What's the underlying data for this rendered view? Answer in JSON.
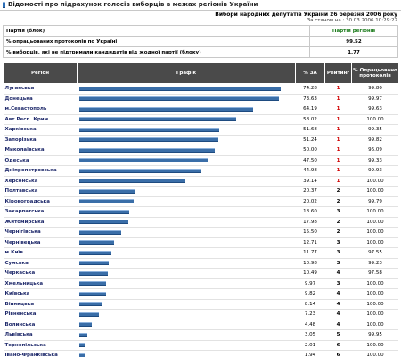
{
  "header": {
    "title": "Відомості про підрахунок голосів виборців в межах регіонів України",
    "election": "Вибори народних депутатів України 26 березня 2006 року",
    "as_of": "За станом на : 30.03.2006 10:29:22"
  },
  "info": {
    "party_label": "Партія (блок)",
    "party_value": "Партія регіонів",
    "processed_label": "% опрацьованих протоколів по Україні",
    "processed_value": "99.52",
    "against_label": "% виборців, які не підтримали кандидатів від жодної партії (блоку)",
    "against_value": "1.77"
  },
  "table": {
    "columns": [
      "Регіон",
      "Графік",
      "% ЗА",
      "Рейтинг",
      "% Опрацьовано протоколів"
    ],
    "rows": [
      {
        "region": "Луганська",
        "pct": "74.28",
        "rank": "1",
        "proc": "99.80"
      },
      {
        "region": "Донецька",
        "pct": "73.63",
        "rank": "1",
        "proc": "99.97"
      },
      {
        "region": "м.Севастополь",
        "pct": "64.19",
        "rank": "1",
        "proc": "99.63"
      },
      {
        "region": "Авт.Респ. Крим",
        "pct": "58.02",
        "rank": "1",
        "proc": "100.00"
      },
      {
        "region": "Харківська",
        "pct": "51.68",
        "rank": "1",
        "proc": "99.35"
      },
      {
        "region": "Запорізька",
        "pct": "51.24",
        "rank": "1",
        "proc": "99.82"
      },
      {
        "region": "Миколаївська",
        "pct": "50.00",
        "rank": "1",
        "proc": "96.09"
      },
      {
        "region": "Одеська",
        "pct": "47.50",
        "rank": "1",
        "proc": "99.33"
      },
      {
        "region": "Дніпропетровська",
        "pct": "44.98",
        "rank": "1",
        "proc": "99.93"
      },
      {
        "region": "Херсонська",
        "pct": "39.14",
        "rank": "1",
        "proc": "100.00"
      },
      {
        "region": "Полтавська",
        "pct": "20.37",
        "rank": "2",
        "proc": "100.00"
      },
      {
        "region": "Кіровоградська",
        "pct": "20.02",
        "rank": "2",
        "proc": "99.79"
      },
      {
        "region": "Закарпатська",
        "pct": "18.60",
        "rank": "3",
        "proc": "100.00"
      },
      {
        "region": "Житомирська",
        "pct": "17.98",
        "rank": "2",
        "proc": "100.00"
      },
      {
        "region": "Чернігівська",
        "pct": "15.50",
        "rank": "2",
        "proc": "100.00"
      },
      {
        "region": "Чернівецька",
        "pct": "12.71",
        "rank": "3",
        "proc": "100.00"
      },
      {
        "region": "м.Київ",
        "pct": "11.77",
        "rank": "3",
        "proc": "97.55"
      },
      {
        "region": "Сумська",
        "pct": "10.98",
        "rank": "3",
        "proc": "99.23"
      },
      {
        "region": "Черкаська",
        "pct": "10.49",
        "rank": "4",
        "proc": "97.58"
      },
      {
        "region": "Хмельницька",
        "pct": "9.97",
        "rank": "3",
        "proc": "100.00"
      },
      {
        "region": "Київська",
        "pct": "9.82",
        "rank": "4",
        "proc": "100.00"
      },
      {
        "region": "Вінницька",
        "pct": "8.14",
        "rank": "4",
        "proc": "100.00"
      },
      {
        "region": "Рівненська",
        "pct": "7.23",
        "rank": "4",
        "proc": "100.00"
      },
      {
        "region": "Волинська",
        "pct": "4.48",
        "rank": "4",
        "proc": "100.00"
      },
      {
        "region": "Львівська",
        "pct": "3.05",
        "rank": "5",
        "proc": "99.95"
      },
      {
        "region": "Тернопільська",
        "pct": "2.01",
        "rank": "6",
        "proc": "100.00"
      },
      {
        "region": "Івано-Франківська",
        "pct": "1.94",
        "rank": "6",
        "proc": "100.00"
      }
    ]
  },
  "colors": {
    "bar": "#3a6ea8",
    "header_bg": "#4a4a4a",
    "rank_first": "#d00000",
    "party": "#1a7a1a",
    "accent": "#2d6fb8"
  }
}
